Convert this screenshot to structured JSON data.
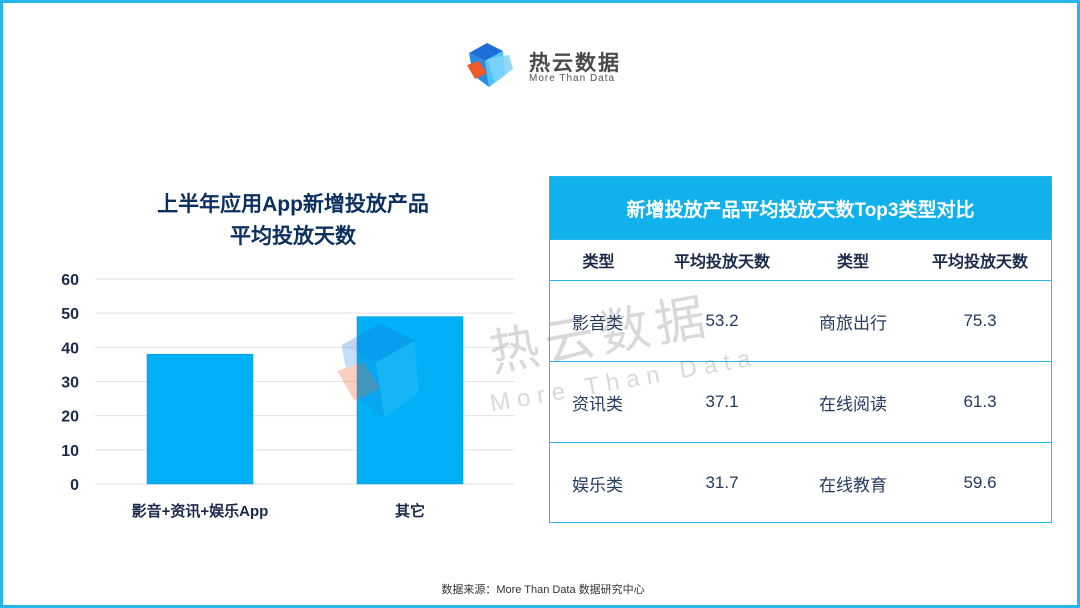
{
  "brand": {
    "name": "热云数据",
    "tagline": "More Than Data",
    "colors": {
      "blue": "#1f6fd6",
      "light_blue": "#4fc3f7",
      "orange": "#ef5a2a"
    }
  },
  "chart_data": {
    "type": "bar",
    "title_line1": "上半年应用App新增投放产品",
    "title_line2": "平均投放天数",
    "categories": [
      "影音+资讯+娱乐App",
      "其它"
    ],
    "values": [
      38,
      49
    ],
    "yticks": [
      "0",
      "10",
      "20",
      "30",
      "40",
      "50",
      "60"
    ],
    "ylim": [
      0,
      60
    ],
    "grid": true,
    "bar_color": "#00b0f6"
  },
  "table": {
    "title": "新增投放产品平均投放天数Top3类型对比",
    "headers": [
      "类型",
      "平均投放天数",
      "类型",
      "平均投放天数"
    ],
    "rows": [
      [
        "影音类",
        "53.2",
        "商旅出行",
        "75.3"
      ],
      [
        "资讯类",
        "37.1",
        "在线阅读",
        "61.3"
      ],
      [
        "娱乐类",
        "31.7",
        "在线教育",
        "59.6"
      ]
    ]
  },
  "watermark": {
    "title": "热云数据",
    "subtitle": "More Than Data"
  },
  "source": "数据来源：More  Than  Data  数据研究中心"
}
